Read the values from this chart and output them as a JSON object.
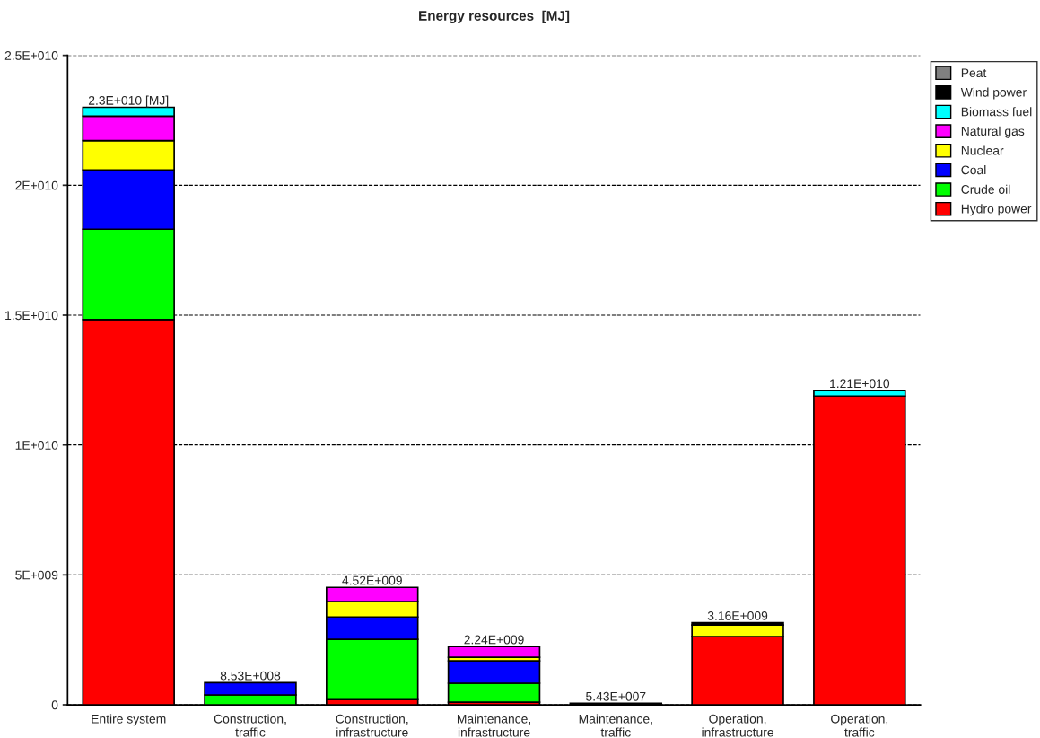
{
  "chart_data": {
    "type": "bar",
    "title": "Energy resources  [MJ]",
    "stacked": true,
    "categories": [
      "Entire system",
      "Construction,\ntraffic",
      "Construction,\ninfrastructure",
      "Maintenance,\ninfrastructure",
      "Maintenance,\ntraffic",
      "Operation,\ninfrastructure",
      "Operation,\ntraffic"
    ],
    "series": [
      {
        "name": "Hydro power",
        "color": "#ff0000",
        "values": [
          14830000000,
          0,
          200000000,
          100000000,
          0,
          2620000000,
          11880000000
        ]
      },
      {
        "name": "Crude oil",
        "color": "#00ff00",
        "values": [
          3480000000,
          380000000,
          2320000000,
          730000000,
          54300000,
          0,
          0
        ]
      },
      {
        "name": "Coal",
        "color": "#0000ff",
        "values": [
          2280000000,
          473000000,
          860000000,
          860000000,
          0,
          0,
          0
        ]
      },
      {
        "name": "Nuclear",
        "color": "#ffff00",
        "values": [
          1130000000,
          0,
          590000000,
          140000000,
          0,
          450000000,
          0
        ]
      },
      {
        "name": "Natural gas",
        "color": "#ff00ff",
        "values": [
          940000000,
          0,
          550000000,
          410000000,
          0,
          0,
          0
        ]
      },
      {
        "name": "Biomass fuel",
        "color": "#00ffff",
        "values": [
          340000000,
          0,
          0,
          0,
          0,
          0,
          220000000
        ]
      },
      {
        "name": "Wind power",
        "color": "#000000",
        "values": [
          0,
          0,
          0,
          0,
          0,
          90000000,
          0
        ]
      },
      {
        "name": "Peat",
        "color": "#808080",
        "values": [
          0,
          0,
          0,
          0,
          0,
          0,
          0
        ]
      }
    ],
    "totals": [
      "2.3E+010 [MJ]",
      "8.53E+008",
      "4.52E+009",
      "2.24E+009",
      "5.43E+007",
      "3.16E+009",
      "1.21E+010"
    ],
    "ylim": [
      0,
      25000000000
    ],
    "yticks": [
      {
        "value": 0,
        "label": "0"
      },
      {
        "value": 5000000000,
        "label": "5E+009"
      },
      {
        "value": 10000000000,
        "label": "1E+010"
      },
      {
        "value": 15000000000,
        "label": "1.5E+010"
      },
      {
        "value": 20000000000,
        "label": "2E+010"
      },
      {
        "value": 25000000000,
        "label": "2.5E+010"
      }
    ],
    "grid": "y",
    "legend": "top right"
  }
}
